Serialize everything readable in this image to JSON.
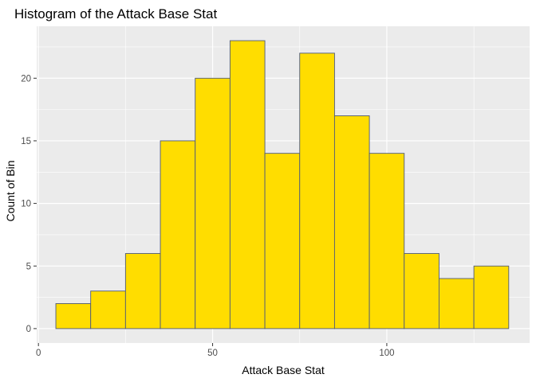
{
  "chart_data": {
    "type": "bar",
    "subtype": "histogram",
    "title": "Histogram of the Attack Base Stat",
    "xlabel": "Attack Base Stat",
    "ylabel": "Count of Bin",
    "bin_width": 10,
    "bins": [
      {
        "start": 5,
        "end": 15,
        "count": 2
      },
      {
        "start": 15,
        "end": 25,
        "count": 3
      },
      {
        "start": 25,
        "end": 35,
        "count": 6
      },
      {
        "start": 35,
        "end": 45,
        "count": 15
      },
      {
        "start": 45,
        "end": 55,
        "count": 20
      },
      {
        "start": 55,
        "end": 65,
        "count": 23
      },
      {
        "start": 65,
        "end": 75,
        "count": 14
      },
      {
        "start": 75,
        "end": 85,
        "count": 22
      },
      {
        "start": 85,
        "end": 95,
        "count": 17
      },
      {
        "start": 95,
        "end": 105,
        "count": 14
      },
      {
        "start": 105,
        "end": 115,
        "count": 6
      },
      {
        "start": 115,
        "end": 125,
        "count": 4
      },
      {
        "start": 125,
        "end": 135,
        "count": 5
      }
    ],
    "x_ticks": [
      0,
      50,
      100
    ],
    "y_ticks": [
      0,
      5,
      10,
      15,
      20
    ],
    "xlim": [
      -0.5,
      141
    ],
    "ylim": [
      -1.15,
      24.15
    ],
    "grid": true,
    "colors": {
      "bar_fill": "#FFDD00",
      "bar_stroke": "#4F5B7A",
      "panel_background": "#EBEBEB",
      "grid_line": "#FFFFFF"
    }
  }
}
